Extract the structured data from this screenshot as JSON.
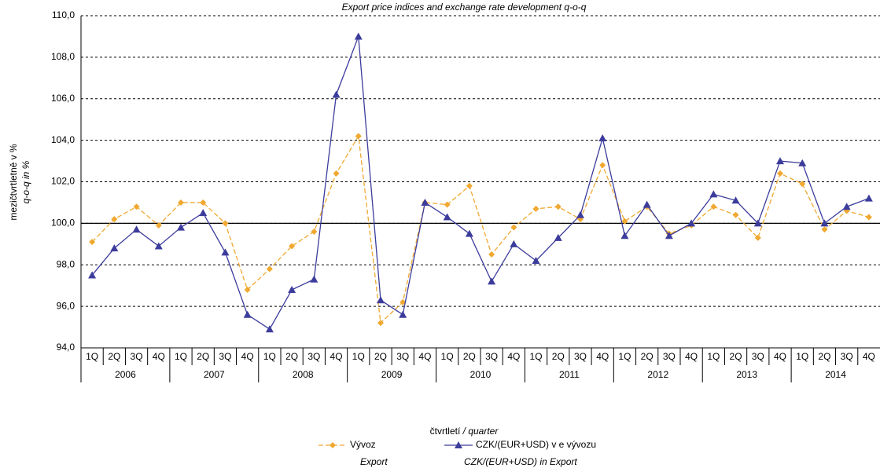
{
  "chart_data": {
    "type": "line",
    "title": "Export price indices and exchange rate development  q-o-q",
    "y_label": "mezičtvrtletně v %",
    "y_label_en": "q-o-q  in %",
    "x_label": "čtvrtletí",
    "x_label_en": "/ quarter",
    "categories": [
      "1Q",
      "2Q",
      "3Q",
      "4Q",
      "1Q",
      "2Q",
      "3Q",
      "4Q",
      "1Q",
      "2Q",
      "3Q",
      "4Q",
      "1Q",
      "2Q",
      "3Q",
      "4Q",
      "1Q",
      "2Q",
      "3Q",
      "4Q",
      "1Q",
      "2Q",
      "3Q",
      "4Q",
      "1Q",
      "2Q",
      "3Q",
      "4Q",
      "1Q",
      "2Q",
      "3Q",
      "4Q",
      "1Q",
      "2Q",
      "3Q",
      "4Q"
    ],
    "years": [
      "2006",
      "2007",
      "2008",
      "2009",
      "2010",
      "2011",
      "2012",
      "2013",
      "2014"
    ],
    "series": [
      {
        "name": "Vývoz",
        "name_en": "Export",
        "color": "#f0a830",
        "dashed": true,
        "marker": "diamond",
        "values": [
          99.1,
          100.2,
          100.8,
          99.9,
          101.0,
          101.0,
          100.0,
          96.8,
          97.8,
          98.9,
          99.6,
          102.4,
          104.2,
          95.2,
          96.2,
          101.0,
          100.9,
          101.8,
          98.5,
          99.8,
          100.7,
          100.8,
          100.2,
          102.8,
          100.1,
          100.8,
          99.5,
          99.9,
          100.8,
          100.4,
          99.3,
          102.4,
          101.9,
          99.7,
          100.6,
          100.3
        ]
      },
      {
        "name": "CZK/(EUR+USD) v e vývozu",
        "name_en": "CZK/(EUR+USD) in Export",
        "color": "#3c3c9c",
        "dashed": false,
        "marker": "triangle",
        "values": [
          97.5,
          98.8,
          99.7,
          98.9,
          99.8,
          100.5,
          98.6,
          95.6,
          94.9,
          96.8,
          97.3,
          106.2,
          109.0,
          96.3,
          95.6,
          101.0,
          100.3,
          99.5,
          97.2,
          99.0,
          98.2,
          99.3,
          100.4,
          104.1,
          99.4,
          100.9,
          99.4,
          100.0,
          101.4,
          101.1,
          100.0,
          103.0,
          102.9,
          100.0,
          100.8,
          101.2
        ]
      }
    ],
    "ylim": [
      94,
      110
    ],
    "yticks": [
      {
        "value": 94,
        "label": "94,0"
      },
      {
        "value": 96,
        "label": "96,0"
      },
      {
        "value": 98,
        "label": "98,0"
      },
      {
        "value": 100,
        "label": "100,0"
      },
      {
        "value": 102,
        "label": "102,0"
      },
      {
        "value": 104,
        "label": "104,0"
      },
      {
        "value": 106,
        "label": "106,0"
      },
      {
        "value": 108,
        "label": "108,0"
      },
      {
        "value": 110,
        "label": "110,0"
      }
    ],
    "baseline": 100,
    "grid": true
  }
}
